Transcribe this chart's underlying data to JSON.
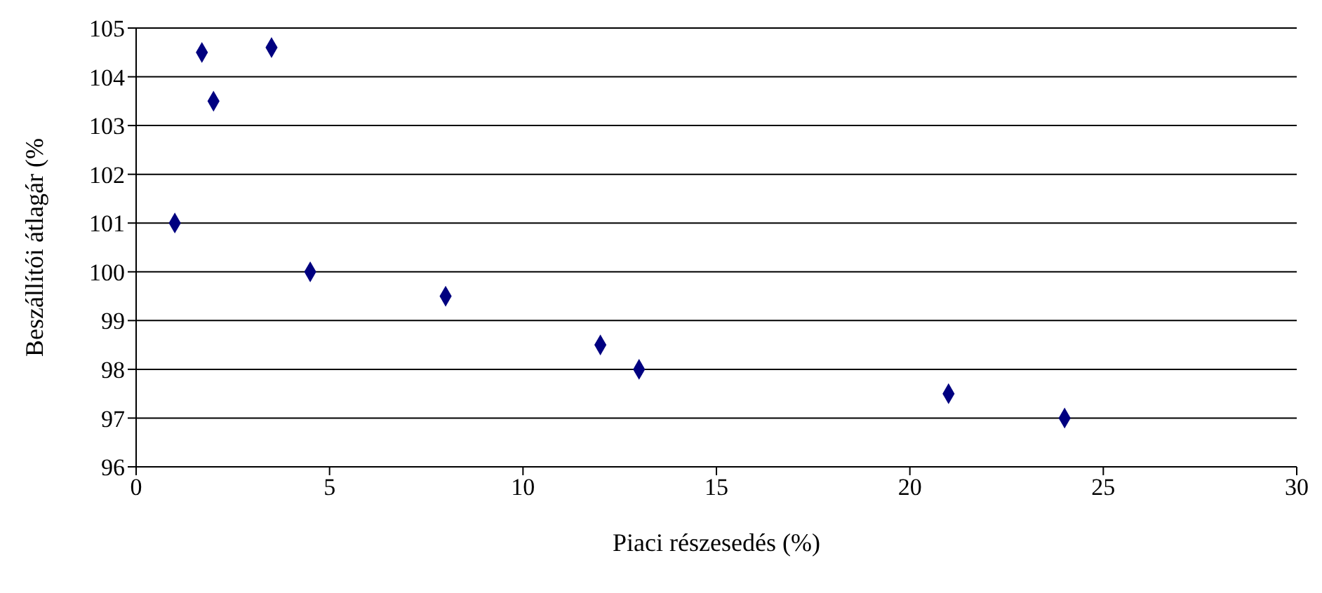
{
  "chart_data": {
    "type": "scatter",
    "xlabel": "Piaci részesedés (%)",
    "ylabel": "Beszállítói átlagár (%",
    "x": [
      1,
      1.7,
      2,
      3.5,
      4.5,
      8,
      12,
      13,
      21,
      24
    ],
    "series": [
      {
        "color": "#000080",
        "values": [
          101,
          104.5,
          103.5,
          104.6,
          100,
          99.5,
          98.5,
          98,
          97.5,
          97
        ]
      }
    ],
    "xlim": [
      0,
      30
    ],
    "xticks": [
      0,
      5,
      10,
      15,
      20,
      25,
      30
    ],
    "ylim": [
      96,
      105
    ],
    "yticks": [
      96,
      97,
      98,
      99,
      100,
      101,
      102,
      103,
      104,
      105
    ],
    "grid": "y",
    "marker": "diamond",
    "legend": false
  }
}
